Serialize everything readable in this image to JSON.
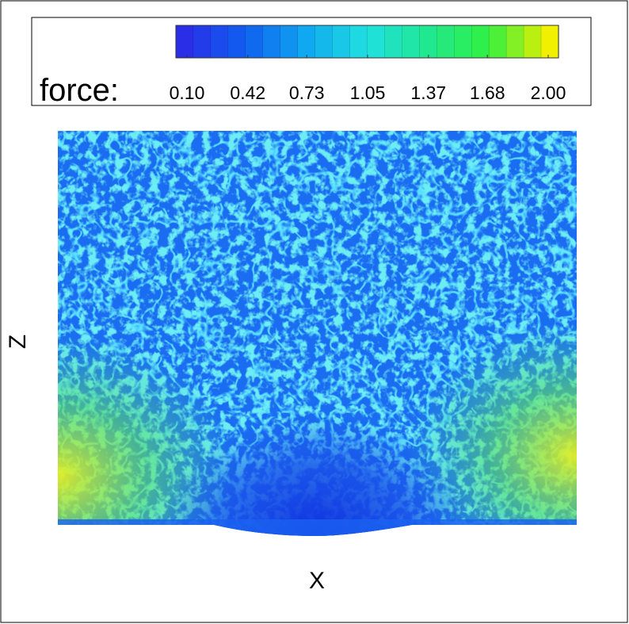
{
  "chart_data": {
    "type": "contour",
    "xlabel": "X",
    "ylabel": "Z",
    "colorbar": {
      "label": "force:",
      "lim": [
        0.1,
        2.0
      ],
      "ticks": [
        {
          "value": 0.1,
          "label": "0.10"
        },
        {
          "value": 0.42,
          "label": "0.42"
        },
        {
          "value": 0.73,
          "label": "0.73"
        },
        {
          "value": 1.05,
          "label": "1.05"
        },
        {
          "value": 1.37,
          "label": "1.37"
        },
        {
          "value": 1.68,
          "label": "1.68"
        },
        {
          "value": 2.0,
          "label": "2.00"
        }
      ],
      "colormap": [
        "#2a2ee6",
        "#1060f0",
        "#10a8f0",
        "#20e0e0",
        "#20e890",
        "#30f040",
        "#f0f000"
      ]
    }
  }
}
